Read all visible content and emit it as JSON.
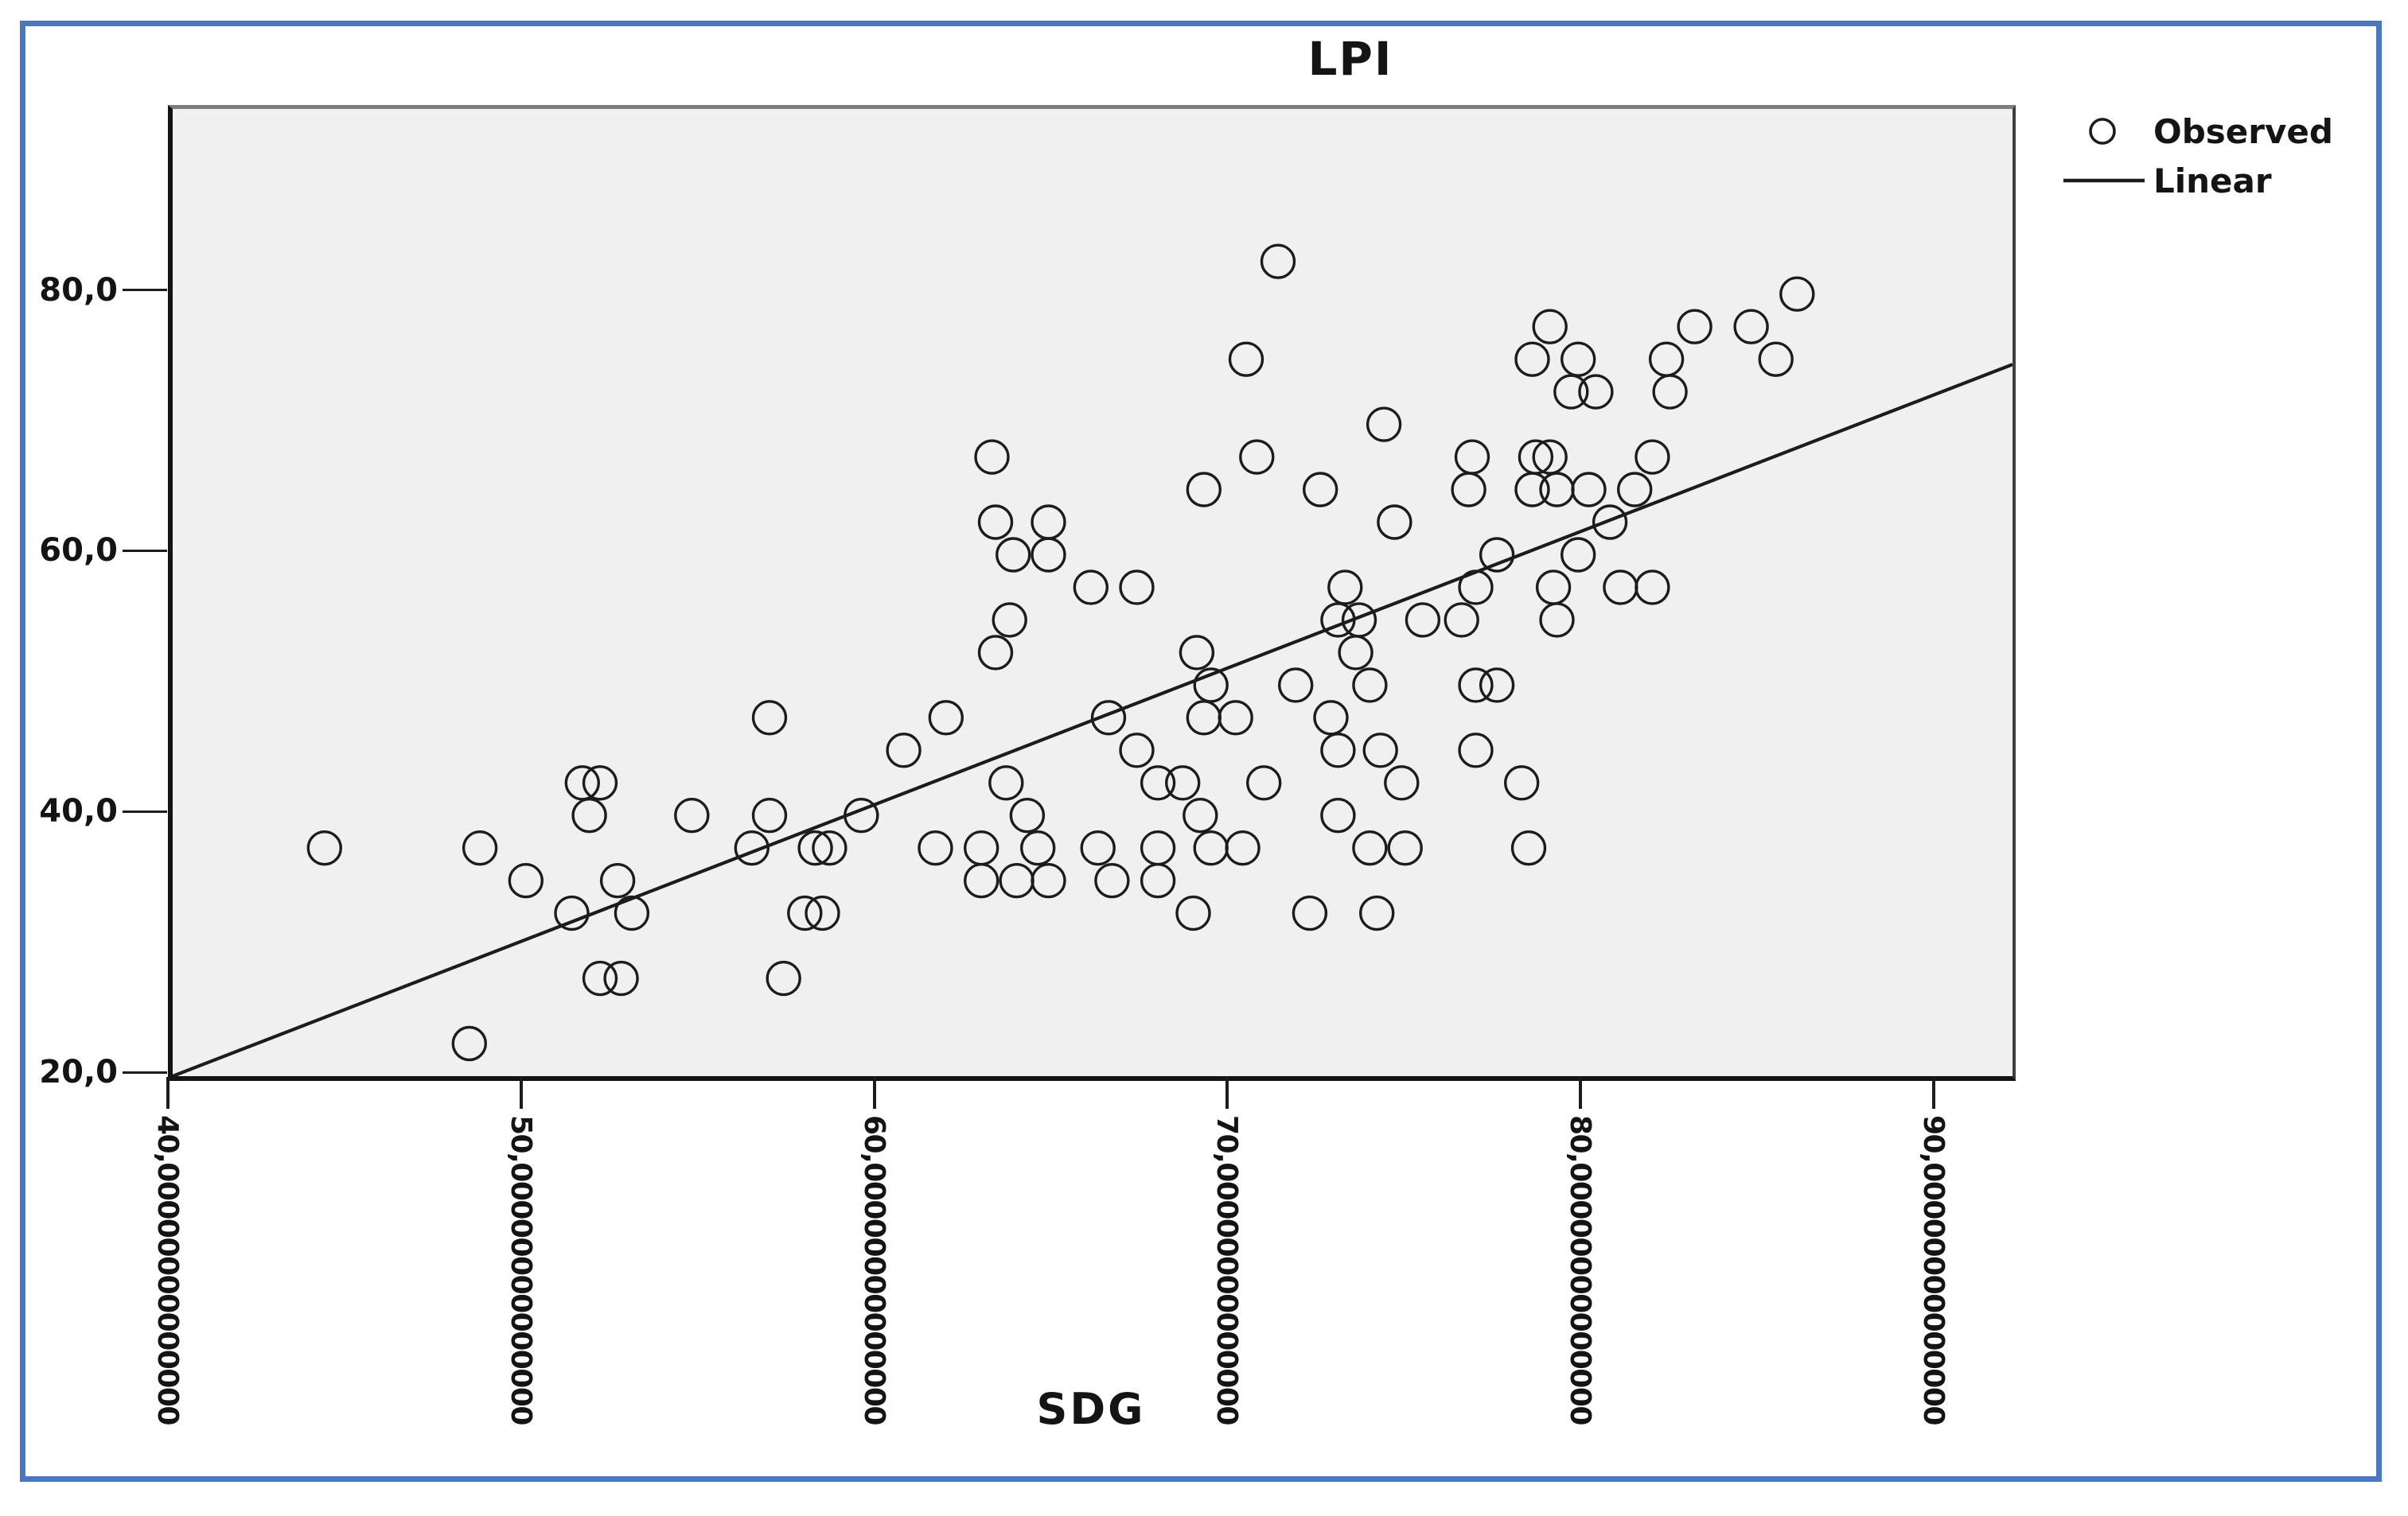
{
  "title": "LPI",
  "x_axis_title": "SDG",
  "legend": {
    "observed_label": "Observed",
    "linear_label": "Linear"
  },
  "colors": {
    "outer_border_blue": "#4a77bd",
    "plot_background": "#f0f0f0",
    "ink": "#1c1c1c",
    "frame_gray": "#7d7d7d"
  },
  "chart_data": {
    "type": "scatter",
    "title": "LPI",
    "xlabel": "SDG",
    "ylabel": "",
    "grid": false,
    "plot_bg": "#f0f0f0",
    "legend_position": "top-right-outside",
    "xlim": [
      40,
      92.1
    ],
    "ylim": [
      20,
      94.2
    ],
    "x_axis": {
      "ticks": [
        {
          "value": 40,
          "label": "40,00000000000000"
        },
        {
          "value": 50,
          "label": "50,00000000000000"
        },
        {
          "value": 60,
          "label": "60,00000000000000"
        },
        {
          "value": 70,
          "label": "70,00000000000000"
        },
        {
          "value": 80,
          "label": "80,00000000000000"
        },
        {
          "value": 90,
          "label": "90,00000000000000"
        }
      ],
      "label_rotation_deg": 90
    },
    "y_axis": {
      "ticks": [
        {
          "value": 80,
          "label": "80,0"
        },
        {
          "value": 60,
          "label": "60,0"
        },
        {
          "value": 40,
          "label": "40,0"
        },
        {
          "value": 20,
          "label": "20,0"
        }
      ]
    },
    "series": [
      {
        "name": "Observed",
        "type": "scatter",
        "marker": "open-circle",
        "points": [
          [
            56.9,
            47.5
          ],
          [
            60.7,
            45
          ],
          [
            51.6,
            42.5
          ],
          [
            52.1,
            42.5
          ],
          [
            51.8,
            40
          ],
          [
            54.7,
            40
          ],
          [
            56.9,
            40
          ],
          [
            59.5,
            40
          ],
          [
            44.3,
            37.5
          ],
          [
            48.7,
            37.5
          ],
          [
            56.4,
            37.5
          ],
          [
            58.2,
            37.5
          ],
          [
            58.6,
            37.5
          ],
          [
            50.0,
            35
          ],
          [
            52.6,
            35
          ],
          [
            51.3,
            32.5
          ],
          [
            53.0,
            32.5
          ],
          [
            57.9,
            32.5
          ],
          [
            58.4,
            32.5
          ],
          [
            52.1,
            27.5
          ],
          [
            52.7,
            27.5
          ],
          [
            57.3,
            27.5
          ],
          [
            48.4,
            22.5
          ],
          [
            69.4,
            50
          ],
          [
            71.8,
            50
          ],
          [
            73.9,
            50
          ],
          [
            76.9,
            50
          ],
          [
            77.5,
            50
          ],
          [
            61.9,
            47.5
          ],
          [
            66.5,
            47.5
          ],
          [
            69.2,
            47.5
          ],
          [
            70.1,
            47.5
          ],
          [
            72.8,
            47.5
          ],
          [
            67.3,
            45
          ],
          [
            73.0,
            45
          ],
          [
            74.2,
            45
          ],
          [
            76.9,
            45
          ],
          [
            63.6,
            42.5
          ],
          [
            67.9,
            42.5
          ],
          [
            68.6,
            42.5
          ],
          [
            70.9,
            42.5
          ],
          [
            74.8,
            42.5
          ],
          [
            64.2,
            40
          ],
          [
            69.1,
            40
          ],
          [
            73.0,
            40
          ],
          [
            61.6,
            37.5
          ],
          [
            62.9,
            37.5
          ],
          [
            64.5,
            37.5
          ],
          [
            66.2,
            37.5
          ],
          [
            67.9,
            37.5
          ],
          [
            69.4,
            37.5
          ],
          [
            70.3,
            37.5
          ],
          [
            73.9,
            37.5
          ],
          [
            74.9,
            37.5
          ],
          [
            62.9,
            35
          ],
          [
            63.9,
            35
          ],
          [
            64.8,
            35
          ],
          [
            66.6,
            35
          ],
          [
            67.9,
            35
          ],
          [
            68.9,
            32.5
          ],
          [
            72.2,
            32.5
          ],
          [
            74.1,
            32.5
          ],
          [
            71.3,
            82.5
          ],
          [
            70.4,
            75
          ],
          [
            74.3,
            70
          ],
          [
            63.2,
            67.5
          ],
          [
            70.7,
            67.5
          ],
          [
            76.8,
            67.5
          ],
          [
            69.2,
            65
          ],
          [
            72.5,
            65
          ],
          [
            76.7,
            65
          ],
          [
            63.3,
            62.5
          ],
          [
            64.8,
            62.5
          ],
          [
            74.6,
            62.5
          ],
          [
            63.8,
            60
          ],
          [
            64.8,
            60
          ],
          [
            66.0,
            57.5
          ],
          [
            67.3,
            57.5
          ],
          [
            73.2,
            57.5
          ],
          [
            76.9,
            57.5
          ],
          [
            63.7,
            55
          ],
          [
            73.0,
            55
          ],
          [
            73.6,
            55
          ],
          [
            75.4,
            55
          ],
          [
            76.5,
            55
          ],
          [
            63.3,
            52.5
          ],
          [
            69.0,
            52.5
          ],
          [
            73.5,
            52.5
          ],
          [
            86.0,
            80
          ],
          [
            79.0,
            77.5
          ],
          [
            83.1,
            77.5
          ],
          [
            84.7,
            77.5
          ],
          [
            78.5,
            75
          ],
          [
            79.8,
            75
          ],
          [
            82.3,
            75
          ],
          [
            85.4,
            75
          ],
          [
            79.6,
            72.5
          ],
          [
            80.3,
            72.5
          ],
          [
            82.4,
            72.5
          ],
          [
            78.6,
            67.5
          ],
          [
            79.0,
            67.5
          ],
          [
            81.9,
            67.5
          ],
          [
            78.5,
            65
          ],
          [
            79.2,
            65
          ],
          [
            80.1,
            65
          ],
          [
            81.4,
            65
          ],
          [
            80.7,
            62.5
          ],
          [
            77.5,
            60
          ],
          [
            79.8,
            60
          ],
          [
            79.1,
            57.5
          ],
          [
            81.0,
            57.5
          ],
          [
            81.9,
            57.5
          ],
          [
            79.2,
            55
          ],
          [
            78.2,
            42.5
          ],
          [
            78.4,
            37.5
          ]
        ]
      },
      {
        "name": "Linear",
        "type": "line",
        "x1": 40,
        "y1": 20,
        "x2": 92.1,
        "y2": 74.6
      }
    ]
  }
}
